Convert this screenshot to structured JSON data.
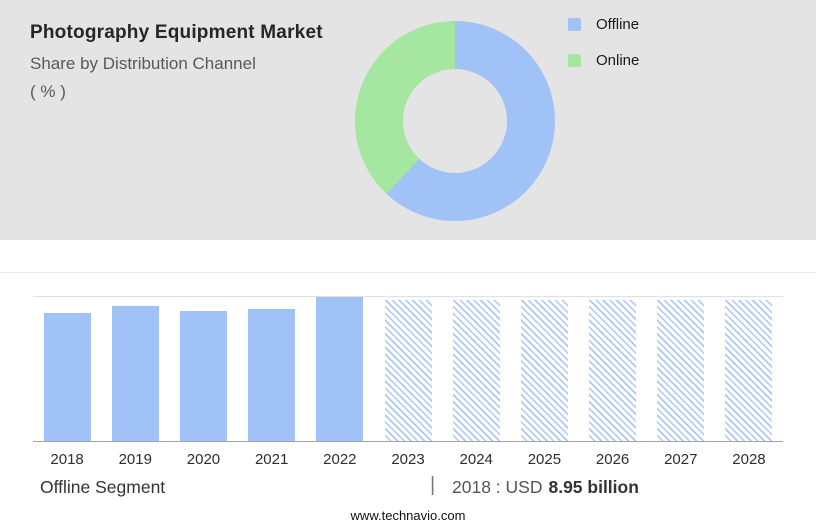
{
  "header": {
    "title": "Photography Equipment Market",
    "subtitle": "Share by Distribution Channel",
    "unit": "( % )"
  },
  "legend": [
    {
      "label": "Offline",
      "color": "#a1c2f7"
    },
    {
      "label": "Online",
      "color": "#a5e6a0"
    }
  ],
  "chart_data": [
    {
      "type": "pie",
      "title": "Photography Equipment Market - Share by Distribution Channel (%)",
      "labels": [
        "Offline",
        "Online"
      ],
      "values": [
        62,
        38
      ],
      "colors": [
        "#a1c2f7",
        "#a5e6a0"
      ],
      "donut": true,
      "start_angle_deg": 0,
      "legend_position": "right"
    },
    {
      "type": "bar",
      "categories": [
        "2018",
        "2019",
        "2020",
        "2021",
        "2022",
        "2023",
        "2024",
        "2025",
        "2026",
        "2027",
        "2028"
      ],
      "values": [
        89,
        94,
        90,
        92,
        100,
        98,
        98,
        98,
        98,
        98,
        98
      ],
      "values_unit": "percent of tallest bar (no y-axis labels shown)",
      "labeled_point": {
        "year": "2018",
        "value": "USD 8.95 billion"
      },
      "solid_years": [
        "2018",
        "2019",
        "2020",
        "2021",
        "2022"
      ],
      "hatched_years": [
        "2023",
        "2024",
        "2025",
        "2026",
        "2027",
        "2028"
      ],
      "bar_color": "#a1c2f7",
      "xlabel": "",
      "ylabel": "",
      "grid": "single top gridline, baseline axis",
      "legend_position": "none"
    }
  ],
  "footer": {
    "segment_label": "Offline Segment",
    "separator": "|",
    "value_prefix": "2018 : USD",
    "value_bold": "8.95 billion",
    "website": "www.technavio.com"
  }
}
